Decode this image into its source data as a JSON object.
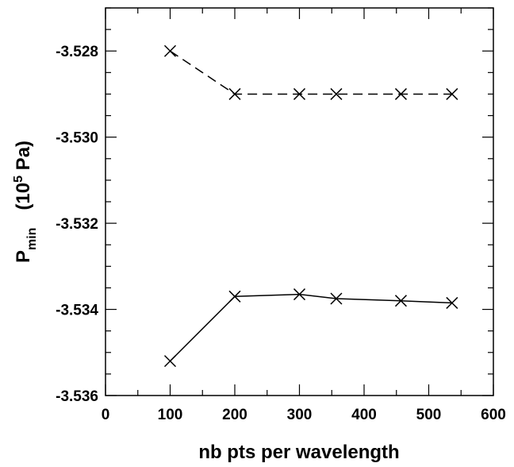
{
  "chart_data": {
    "type": "line",
    "title": "",
    "xlabel": "nb pts per wavelength",
    "ylabel": {
      "symbol": "P",
      "subscript": "min",
      "unit_open": "(10",
      "unit_exponent": "5",
      "unit_close": " Pa)"
    },
    "xlim": [
      0,
      600
    ],
    "ylim": [
      -3.536,
      -3.527
    ],
    "xticks": [
      0,
      100,
      200,
      300,
      400,
      500,
      600
    ],
    "xtick_labels": [
      "0",
      "100",
      "200",
      "300",
      "400",
      "500",
      "600"
    ],
    "yticks": [
      -3.536,
      -3.534,
      -3.532,
      -3.53,
      -3.528
    ],
    "ytick_labels": [
      "-3.536",
      "-3.534",
      "-3.532",
      "-3.530",
      "-3.528"
    ],
    "x_minor_step": 50,
    "y_minor_step": 0.0005,
    "grid": false,
    "legend": "none",
    "series": [
      {
        "line_style": "dashed",
        "marker": "x",
        "color": "#000000",
        "x": [
          100,
          200,
          300,
          357,
          457,
          536
        ],
        "y": [
          -3.528,
          -3.529,
          -3.529,
          -3.529,
          -3.529,
          -3.529
        ]
      },
      {
        "line_style": "solid",
        "marker": "x",
        "color": "#000000",
        "x": [
          100,
          200,
          300,
          357,
          457,
          536
        ],
        "y": [
          -3.5352,
          -3.5337,
          -3.53365,
          -3.53375,
          -3.5338,
          -3.53385
        ]
      }
    ]
  }
}
